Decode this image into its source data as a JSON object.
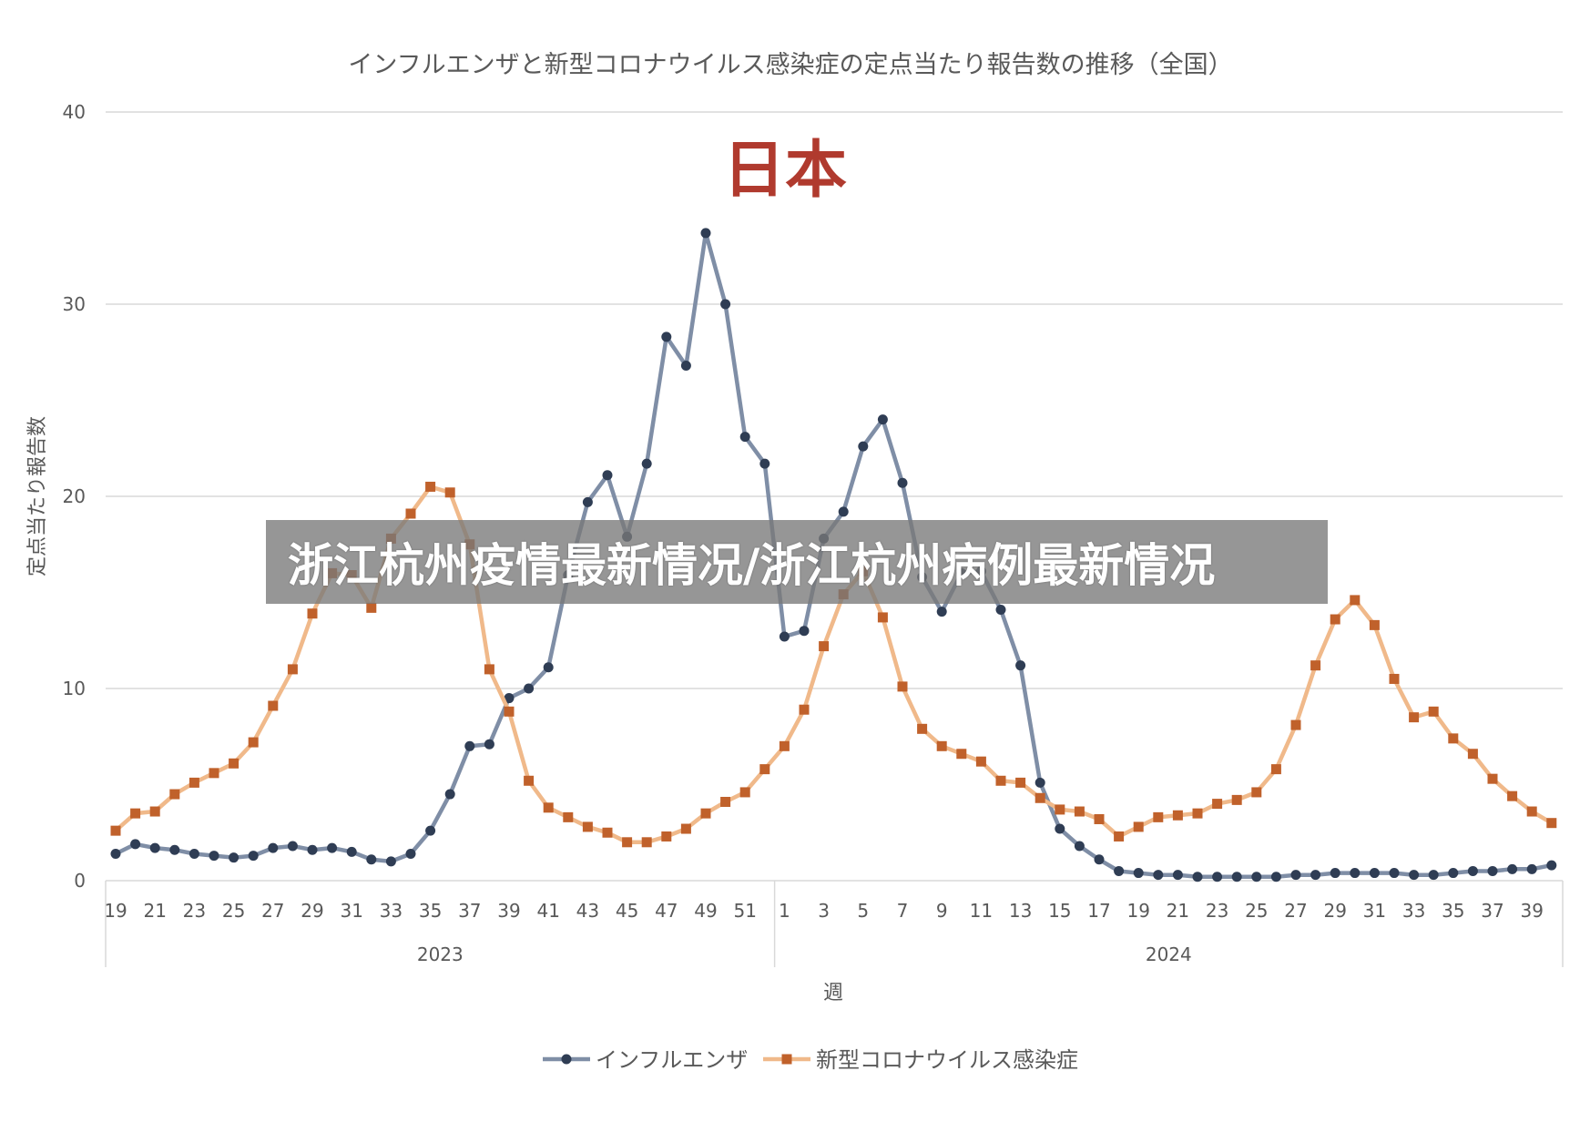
{
  "banner": {
    "text": "浙江杭州疫情最新情况/浙江杭州病例最新情况"
  },
  "chart_data": {
    "type": "line",
    "title": "インフルエンザと新型コロナウイルス感染症の定点当たり報告数の推移（全国）",
    "overlay_title": "日本",
    "xlabel": "週",
    "ylabel": "定点当たり報告数",
    "ylim": [
      0,
      40
    ],
    "yticks": [
      0,
      10,
      20,
      30,
      40
    ],
    "grid": true,
    "legend_position": "bottom",
    "years": [
      {
        "label": "2023",
        "weeks": [
          19,
          20,
          21,
          22,
          23,
          24,
          25,
          26,
          27,
          28,
          29,
          30,
          31,
          32,
          33,
          34,
          35,
          36,
          37,
          38,
          39,
          40,
          41,
          42,
          43,
          44,
          45,
          46,
          47,
          48,
          49,
          50,
          51,
          52
        ]
      },
      {
        "label": "2024",
        "weeks": [
          1,
          2,
          3,
          4,
          5,
          6,
          7,
          8,
          9,
          10,
          11,
          12,
          13,
          14,
          15,
          16,
          17,
          18,
          19,
          20,
          21,
          22,
          23,
          24,
          25,
          26,
          27,
          28,
          29,
          30,
          31,
          32,
          33,
          34,
          35,
          36,
          37,
          38,
          39,
          40
        ]
      }
    ],
    "series": [
      {
        "name": "インフルエンザ",
        "color": "#7f8ea6",
        "marker_color": "#2f3d54",
        "marker": "circle",
        "values": [
          1.4,
          1.9,
          1.7,
          1.6,
          1.4,
          1.3,
          1.2,
          1.3,
          1.7,
          1.8,
          1.6,
          1.7,
          1.5,
          1.1,
          1.0,
          1.4,
          2.6,
          4.5,
          7.0,
          7.1,
          9.5,
          10.0,
          11.1,
          15.9,
          19.7,
          21.1,
          17.9,
          21.7,
          28.3,
          26.8,
          33.7,
          30.0,
          23.1,
          21.7,
          12.7,
          13.0,
          17.8,
          19.2,
          22.6,
          24.0,
          20.7,
          15.8,
          14.0,
          16.0,
          16.1,
          14.1,
          11.2,
          5.1,
          2.7,
          1.8,
          1.1,
          0.5,
          0.4,
          0.3,
          0.3,
          0.2,
          0.2,
          0.2,
          0.2,
          0.2,
          0.3,
          0.3,
          0.4,
          0.4,
          0.4,
          0.4,
          0.3,
          0.3,
          0.4,
          0.5,
          0.5,
          0.6,
          0.6,
          0.8
        ]
      },
      {
        "name": "新型コロナウイルス感染症",
        "color": "#f0b98a",
        "marker_color": "#c0612b",
        "marker": "square",
        "values": [
          2.6,
          3.5,
          3.6,
          4.5,
          5.1,
          5.6,
          6.1,
          7.2,
          9.1,
          11.0,
          13.9,
          16.0,
          15.9,
          14.2,
          17.8,
          19.1,
          20.5,
          20.2,
          17.5,
          11.0,
          8.8,
          5.2,
          3.8,
          3.3,
          2.8,
          2.5,
          2.0,
          2.0,
          2.3,
          2.7,
          3.5,
          4.1,
          4.6,
          5.8,
          7.0,
          8.9,
          12.2,
          14.9,
          16.1,
          13.7,
          10.1,
          7.9,
          7.0,
          6.6,
          6.2,
          5.2,
          5.1,
          4.3,
          3.7,
          3.6,
          3.2,
          2.3,
          2.8,
          3.3,
          3.4,
          3.5,
          4.0,
          4.2,
          4.6,
          5.8,
          8.1,
          11.2,
          13.6,
          14.6,
          13.3,
          10.5,
          8.5,
          8.8,
          7.4,
          6.6,
          5.3,
          4.4,
          3.6,
          3.0
        ]
      }
    ]
  }
}
